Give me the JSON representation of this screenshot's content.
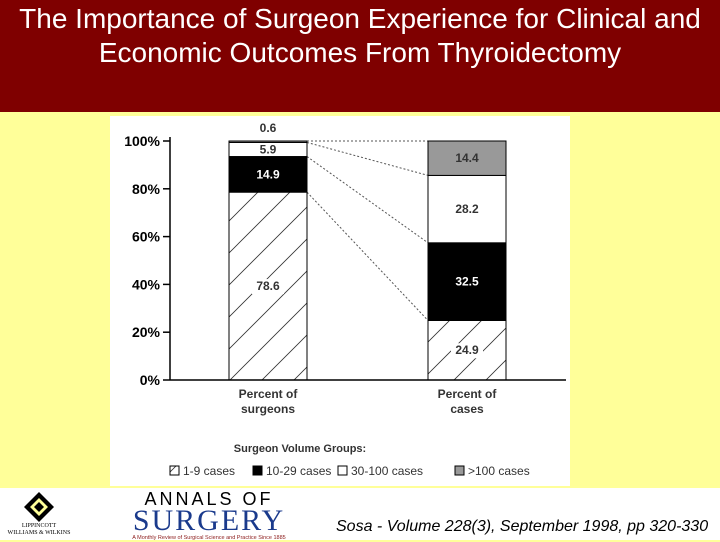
{
  "slide": {
    "title": "The Importance of Surgeon Experience for Clinical and Economic Outcomes From Thyroidectomy",
    "citation": "Sosa - Volume 228(3), September 1998, pp 320-330",
    "colors": {
      "title_bar": "#7f0000",
      "background": "#ffff99"
    }
  },
  "logos": {
    "publisher": {
      "text": "LIPPINCOTT\nWILLIAMS & WILKINS",
      "icon": "lww-diamond-icon"
    },
    "journal": {
      "line1": "ANNALS OF",
      "line2": "SURGERY",
      "tagline": "A Monthly Review of Surgical Science and Practice Since 1885"
    }
  },
  "chart_data": {
    "type": "bar",
    "stacked": true,
    "categories": [
      "Percent of\nsurgeons",
      "Percent of\ncases"
    ],
    "series": [
      {
        "name": "1-9 cases",
        "values": [
          78.6,
          24.9
        ],
        "pattern": "diagonal-hatch"
      },
      {
        "name": "10-29 cases",
        "values": [
          14.9,
          32.5
        ],
        "color": "#000000"
      },
      {
        "name": "30-100 cases",
        "values": [
          5.9,
          28.2
        ],
        "color": "#ffffff"
      },
      {
        "name": ">100 cases",
        "values": [
          0.6,
          14.4
        ],
        "color": "#999999"
      }
    ],
    "yticks": [
      "0%",
      "20%",
      "40%",
      "60%",
      "80%",
      "100%"
    ],
    "ylim": [
      0,
      100
    ],
    "legend_title": "Surgeon Volume Groups:",
    "legend_position": "bottom"
  }
}
